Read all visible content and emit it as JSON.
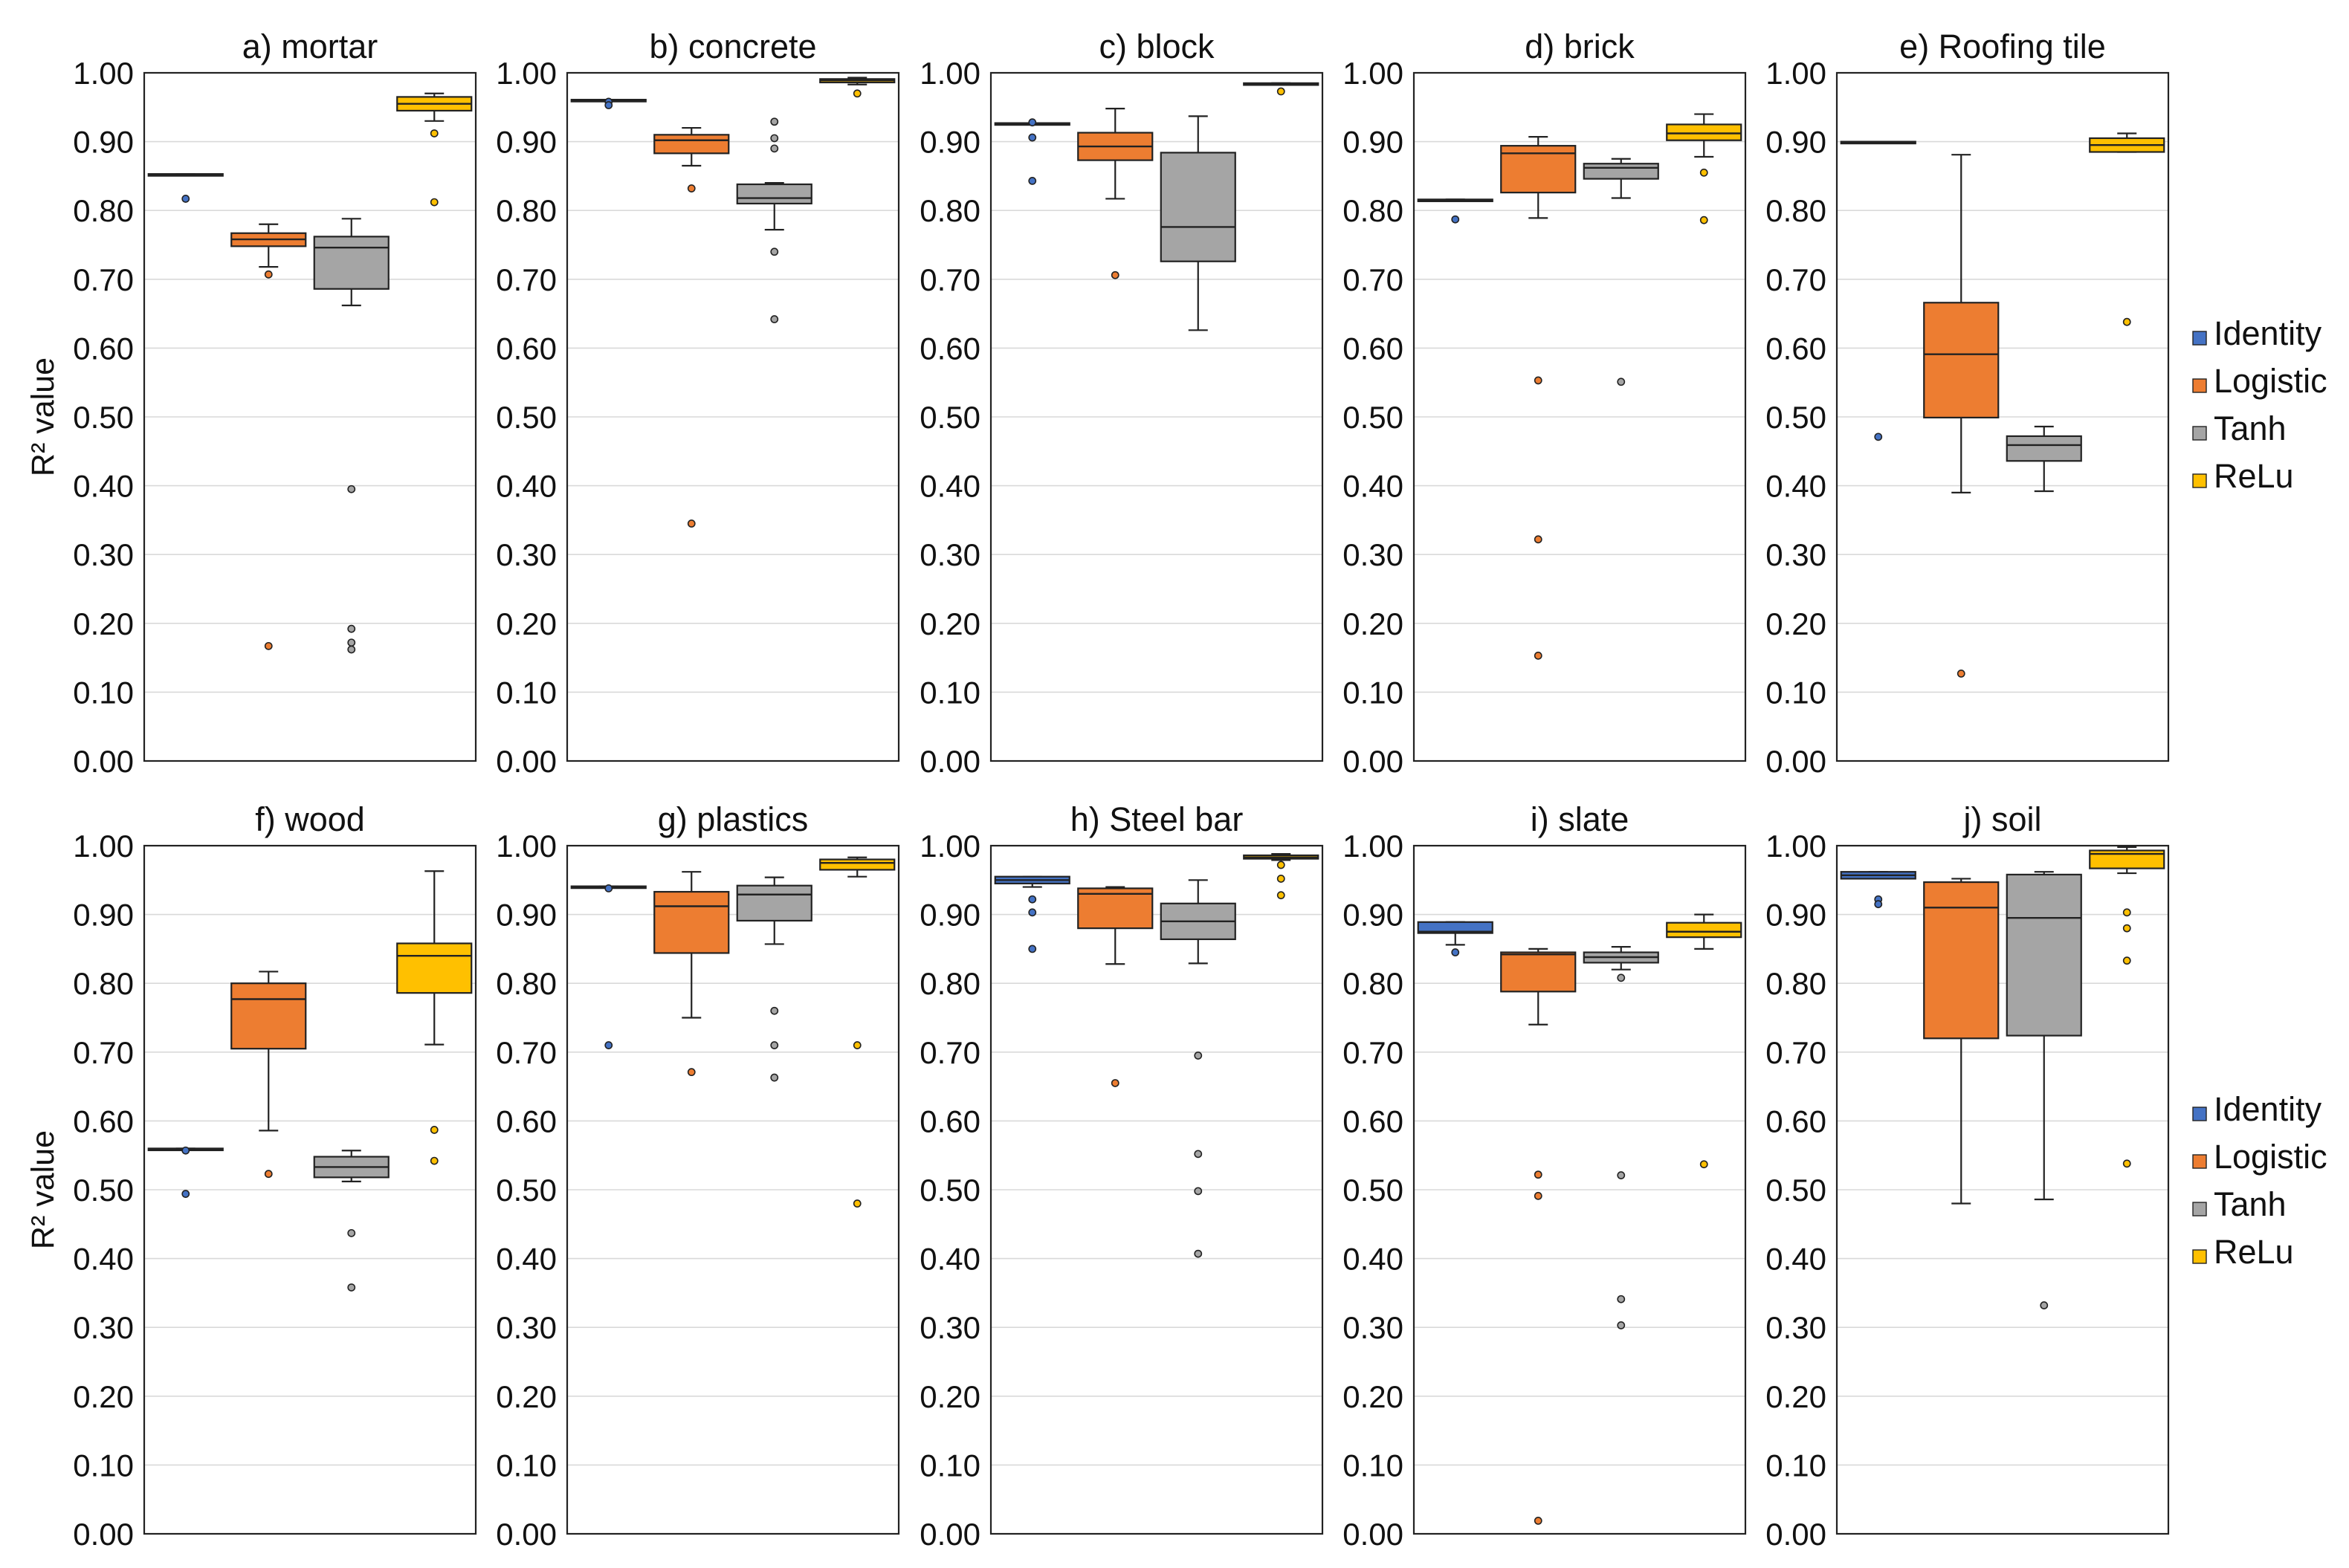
{
  "chart_data": {
    "type": "boxplot",
    "ylabel": "R² value",
    "ylim": [
      0,
      1
    ],
    "yticks": [
      "0.00",
      "0.10",
      "0.20",
      "0.30",
      "0.40",
      "0.50",
      "0.60",
      "0.70",
      "0.80",
      "0.90",
      "1.00"
    ],
    "series_colors": {
      "Identity": "#4472c4",
      "Logistic": "#ed7d31",
      "Tanh": "#a5a5a5",
      "ReLu": "#ffc000"
    },
    "legend": [
      "Identity",
      "Logistic",
      "Tanh",
      "ReLu"
    ],
    "panels": [
      {
        "title": "a) mortar",
        "boxes": [
          {
            "name": "Identity",
            "q1": 0.851,
            "median": 0.852,
            "q3": 0.853,
            "wmin": 0.851,
            "wmax": 0.853,
            "outliers": [
              0.817
            ]
          },
          {
            "name": "Logistic",
            "q1": 0.748,
            "median": 0.758,
            "q3": 0.767,
            "wmin": 0.718,
            "wmax": 0.78,
            "outliers": [
              0.707,
              0.167
            ]
          },
          {
            "name": "Tanh",
            "q1": 0.686,
            "median": 0.746,
            "q3": 0.762,
            "wmin": 0.662,
            "wmax": 0.788,
            "outliers": [
              0.395,
              0.192,
              0.172,
              0.162
            ]
          },
          {
            "name": "ReLu",
            "q1": 0.945,
            "median": 0.955,
            "q3": 0.965,
            "wmin": 0.93,
            "wmax": 0.97,
            "outliers": [
              0.912,
              0.812
            ]
          }
        ]
      },
      {
        "title": "b) concrete",
        "boxes": [
          {
            "name": "Identity",
            "q1": 0.959,
            "median": 0.96,
            "q3": 0.961,
            "wmin": 0.959,
            "wmax": 0.961,
            "outliers": [
              0.958,
              0.953
            ]
          },
          {
            "name": "Logistic",
            "q1": 0.883,
            "median": 0.902,
            "q3": 0.91,
            "wmin": 0.865,
            "wmax": 0.92,
            "outliers": [
              0.832,
              0.345
            ]
          },
          {
            "name": "Tanh",
            "q1": 0.81,
            "median": 0.818,
            "q3": 0.838,
            "wmin": 0.772,
            "wmax": 0.84,
            "outliers": [
              0.929,
              0.905,
              0.89,
              0.74,
              0.642
            ]
          },
          {
            "name": "ReLu",
            "q1": 0.986,
            "median": 0.989,
            "q3": 0.991,
            "wmin": 0.983,
            "wmax": 0.993,
            "outliers": [
              0.97
            ]
          }
        ]
      },
      {
        "title": "c) block",
        "boxes": [
          {
            "name": "Identity",
            "q1": 0.925,
            "median": 0.926,
            "q3": 0.927,
            "wmin": 0.925,
            "wmax": 0.927,
            "outliers": [
              0.928,
              0.906,
              0.843
            ]
          },
          {
            "name": "Logistic",
            "q1": 0.873,
            "median": 0.893,
            "q3": 0.913,
            "wmin": 0.817,
            "wmax": 0.948,
            "outliers": [
              0.706
            ]
          },
          {
            "name": "Tanh",
            "q1": 0.726,
            "median": 0.776,
            "q3": 0.884,
            "wmin": 0.626,
            "wmax": 0.937,
            "outliers": []
          },
          {
            "name": "ReLu",
            "q1": 0.983,
            "median": 0.984,
            "q3": 0.985,
            "wmin": 0.983,
            "wmax": 0.985,
            "outliers": [
              0.973
            ]
          }
        ]
      },
      {
        "title": "d) brick",
        "boxes": [
          {
            "name": "Identity",
            "q1": 0.814,
            "median": 0.815,
            "q3": 0.816,
            "wmin": 0.814,
            "wmax": 0.816,
            "outliers": [
              0.787
            ]
          },
          {
            "name": "Logistic",
            "q1": 0.826,
            "median": 0.883,
            "q3": 0.894,
            "wmin": 0.789,
            "wmax": 0.907,
            "outliers": [
              0.553,
              0.322,
              0.153
            ]
          },
          {
            "name": "Tanh",
            "q1": 0.846,
            "median": 0.862,
            "q3": 0.868,
            "wmin": 0.818,
            "wmax": 0.875,
            "outliers": [
              0.551
            ]
          },
          {
            "name": "ReLu",
            "q1": 0.902,
            "median": 0.912,
            "q3": 0.925,
            "wmin": 0.878,
            "wmax": 0.94,
            "outliers": [
              0.855,
              0.786
            ]
          }
        ]
      },
      {
        "title": "e) Roofing tile",
        "boxes": [
          {
            "name": "Identity",
            "q1": 0.898,
            "median": 0.899,
            "q3": 0.9,
            "wmin": 0.898,
            "wmax": 0.9,
            "outliers": [
              0.471
            ]
          },
          {
            "name": "Logistic",
            "q1": 0.499,
            "median": 0.591,
            "q3": 0.666,
            "wmin": 0.39,
            "wmax": 0.881,
            "outliers": [
              0.127
            ]
          },
          {
            "name": "Tanh",
            "q1": 0.436,
            "median": 0.459,
            "q3": 0.472,
            "wmin": 0.392,
            "wmax": 0.486,
            "outliers": []
          },
          {
            "name": "ReLu",
            "q1": 0.885,
            "median": 0.895,
            "q3": 0.905,
            "wmin": 0.885,
            "wmax": 0.912,
            "outliers": [
              0.638
            ]
          }
        ]
      },
      {
        "title": "f) wood",
        "boxes": [
          {
            "name": "Identity",
            "q1": 0.558,
            "median": 0.559,
            "q3": 0.56,
            "wmin": 0.558,
            "wmax": 0.56,
            "outliers": [
              0.557,
              0.494
            ]
          },
          {
            "name": "Logistic",
            "q1": 0.705,
            "median": 0.777,
            "q3": 0.8,
            "wmin": 0.586,
            "wmax": 0.817,
            "outliers": [
              0.523
            ]
          },
          {
            "name": "Tanh",
            "q1": 0.518,
            "median": 0.533,
            "q3": 0.548,
            "wmin": 0.512,
            "wmax": 0.557,
            "outliers": [
              0.437,
              0.358
            ]
          },
          {
            "name": "ReLu",
            "q1": 0.786,
            "median": 0.84,
            "q3": 0.858,
            "wmin": 0.711,
            "wmax": 0.963,
            "outliers": [
              0.587,
              0.542
            ]
          }
        ]
      },
      {
        "title": "g) plastics",
        "boxes": [
          {
            "name": "Identity",
            "q1": 0.939,
            "median": 0.94,
            "q3": 0.941,
            "wmin": 0.939,
            "wmax": 0.941,
            "outliers": [
              0.938,
              0.71
            ]
          },
          {
            "name": "Logistic",
            "q1": 0.844,
            "median": 0.912,
            "q3": 0.933,
            "wmin": 0.75,
            "wmax": 0.962,
            "outliers": [
              0.671
            ]
          },
          {
            "name": "Tanh",
            "q1": 0.891,
            "median": 0.929,
            "q3": 0.942,
            "wmin": 0.857,
            "wmax": 0.954,
            "outliers": [
              0.76,
              0.71,
              0.663
            ]
          },
          {
            "name": "ReLu",
            "q1": 0.965,
            "median": 0.975,
            "q3": 0.98,
            "wmin": 0.955,
            "wmax": 0.983,
            "outliers": [
              0.71,
              0.48
            ]
          }
        ]
      },
      {
        "title": "h) Steel bar",
        "boxes": [
          {
            "name": "Identity",
            "q1": 0.945,
            "median": 0.95,
            "q3": 0.955,
            "wmin": 0.94,
            "wmax": 0.955,
            "outliers": [
              0.922,
              0.903,
              0.85
            ]
          },
          {
            "name": "Logistic",
            "q1": 0.88,
            "median": 0.93,
            "q3": 0.938,
            "wmin": 0.828,
            "wmax": 0.94,
            "outliers": [
              0.655
            ]
          },
          {
            "name": "Tanh",
            "q1": 0.864,
            "median": 0.89,
            "q3": 0.916,
            "wmin": 0.829,
            "wmax": 0.95,
            "outliers": [
              0.695,
              0.552,
              0.498,
              0.407
            ]
          },
          {
            "name": "ReLu",
            "q1": 0.981,
            "median": 0.983,
            "q3": 0.986,
            "wmin": 0.979,
            "wmax": 0.988,
            "outliers": [
              0.972,
              0.952,
              0.928
            ]
          }
        ]
      },
      {
        "title": "i) slate",
        "boxes": [
          {
            "name": "Identity",
            "q1": 0.873,
            "median": 0.875,
            "q3": 0.889,
            "wmin": 0.856,
            "wmax": 0.889,
            "outliers": [
              0.845
            ]
          },
          {
            "name": "Logistic",
            "q1": 0.788,
            "median": 0.842,
            "q3": 0.845,
            "wmin": 0.74,
            "wmax": 0.85,
            "outliers": [
              0.522,
              0.491,
              0.019
            ]
          },
          {
            "name": "Tanh",
            "q1": 0.83,
            "median": 0.838,
            "q3": 0.845,
            "wmin": 0.82,
            "wmax": 0.853,
            "outliers": [
              0.808,
              0.521,
              0.341,
              0.303
            ]
          },
          {
            "name": "ReLu",
            "q1": 0.867,
            "median": 0.875,
            "q3": 0.888,
            "wmin": 0.85,
            "wmax": 0.9,
            "outliers": [
              0.537
            ]
          }
        ]
      },
      {
        "title": "j) soil",
        "boxes": [
          {
            "name": "Identity",
            "q1": 0.952,
            "median": 0.957,
            "q3": 0.962,
            "wmin": 0.952,
            "wmax": 0.962,
            "outliers": [
              0.922,
              0.915
            ]
          },
          {
            "name": "Logistic",
            "q1": 0.72,
            "median": 0.91,
            "q3": 0.947,
            "wmin": 0.48,
            "wmax": 0.952,
            "outliers": []
          },
          {
            "name": "Tanh",
            "q1": 0.724,
            "median": 0.895,
            "q3": 0.958,
            "wmin": 0.486,
            "wmax": 0.962,
            "outliers": [
              0.332
            ]
          },
          {
            "name": "ReLu",
            "q1": 0.967,
            "median": 0.988,
            "q3": 0.993,
            "wmin": 0.96,
            "wmax": 0.998,
            "outliers": [
              0.903,
              0.88,
              0.833,
              0.538
            ]
          }
        ]
      }
    ]
  }
}
